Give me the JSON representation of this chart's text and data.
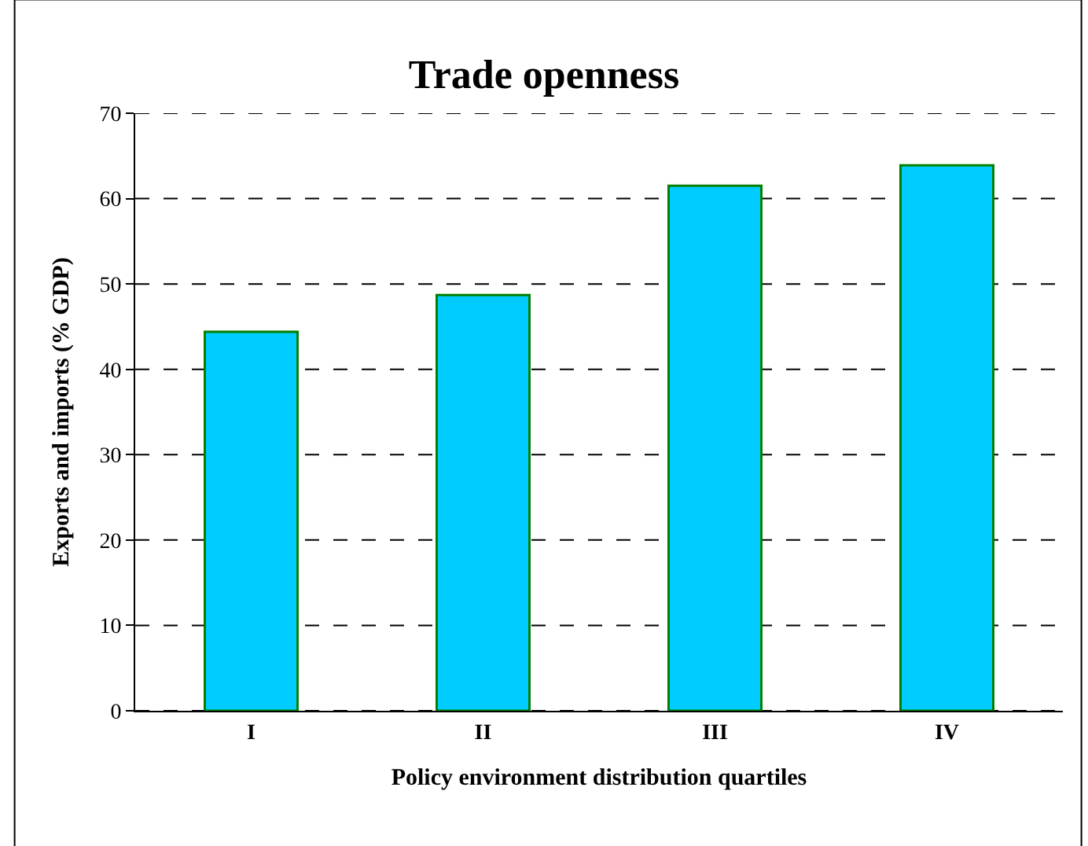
{
  "chart_data": {
    "type": "bar",
    "title": "Trade openness",
    "xlabel": "Policy environment distribution quartiles",
    "ylabel": "Exports and imports (% GDP)",
    "categories": [
      "I",
      "II",
      "III",
      "IV"
    ],
    "values": [
      44.4,
      48.7,
      61.5,
      63.9
    ],
    "color": "#00ccff",
    "ylim": [
      0,
      70
    ],
    "yticks": [
      0,
      10,
      20,
      30,
      40,
      50,
      60,
      70
    ],
    "grid": "y"
  }
}
